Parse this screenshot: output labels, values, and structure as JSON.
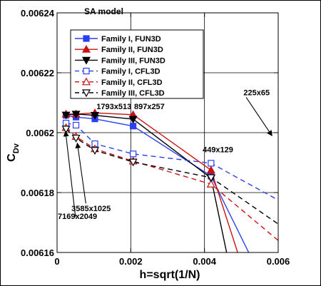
{
  "chart_data": {
    "type": "line",
    "title": "SA model",
    "xlabel": "h=sqrt(1/N)",
    "ylabel_main": "C",
    "ylabel_sub": "Dv",
    "xlim": [
      0,
      0.006
    ],
    "ylim": [
      0.00616,
      0.00624
    ],
    "xticks": [
      0,
      0.002,
      0.004,
      0.006
    ],
    "xtick_labels": [
      "0",
      "0.002",
      "0.004",
      "0.006"
    ],
    "yticks": [
      0.00616,
      0.00618,
      0.0062,
      0.00622,
      0.00624
    ],
    "ytick_labels": [
      "0.00616",
      "0.00618",
      "0.0062",
      "0.00622",
      "0.00624"
    ],
    "grid": true,
    "legend_position": "top-left",
    "colors": {
      "blue": "#2a3ff0",
      "red": "#cc1111",
      "black": "#000000"
    },
    "series": [
      {
        "name": "Family I, FUN3D",
        "color": "#2a3ff0",
        "dash": "solid",
        "marker": "square",
        "fill": true,
        "x": [
          0.000243,
          0.000514,
          0.001026,
          0.002064,
          0.004178,
          0.0052
        ],
        "y": [
          0.0062058,
          0.0062052,
          0.0062046,
          0.0062022,
          0.0061855,
          0.00616
        ]
      },
      {
        "name": "Family II, FUN3D",
        "color": "#cc1111",
        "dash": "solid",
        "marker": "triangle-up",
        "fill": true,
        "x": [
          0.000243,
          0.000514,
          0.001026,
          0.002064,
          0.004178,
          0.0049
        ],
        "y": [
          0.0062062,
          0.0062062,
          0.0062066,
          0.006206,
          0.0061875,
          0.00616
        ]
      },
      {
        "name": "Family III, FUN3D",
        "color": "#000000",
        "dash": "solid",
        "marker": "triangle-down",
        "fill": true,
        "x": [
          0.000243,
          0.000514,
          0.001026,
          0.002064,
          0.004178,
          0.0046
        ],
        "y": [
          0.0062059,
          0.0062062,
          0.0062058,
          0.0062045,
          0.0061848,
          0.00616
        ]
      },
      {
        "name": "Family I, CFL3D",
        "color": "#2a3ff0",
        "dash": "dashed",
        "marker": "square",
        "fill": false,
        "x": [
          0.000243,
          0.000514,
          0.001026,
          0.002064,
          0.004178,
          0.006
        ],
        "y": [
          0.0062032,
          0.0062025,
          0.0061963,
          0.0061929,
          0.0061898,
          0.0061775
        ]
      },
      {
        "name": "Family II, CFL3D",
        "color": "#cc1111",
        "dash": "dashed",
        "marker": "triangle-up",
        "fill": false,
        "x": [
          0.000243,
          0.000514,
          0.001026,
          0.002064,
          0.004178,
          0.006
        ],
        "y": [
          0.0062017,
          0.0061987,
          0.0061946,
          0.0061905,
          0.0061828,
          0.006164
        ]
      },
      {
        "name": "Family III, CFL3D",
        "color": "#000000",
        "dash": "dashed",
        "marker": "triangle-down",
        "fill": false,
        "x": [
          0.000243,
          0.000514,
          0.001026,
          0.002064,
          0.004178,
          0.006
        ],
        "y": [
          0.0062012,
          0.0061982,
          0.0061941,
          0.0061902,
          0.006185,
          0.0061695
        ]
      }
    ],
    "annotations": [
      {
        "text": "1793x513",
        "x": 0.00107,
        "y": 0.0062079,
        "arrow": false
      },
      {
        "text": "897x257",
        "x": 0.00209,
        "y": 0.0062079,
        "arrow": false
      },
      {
        "text": "225x65",
        "x": 0.00506,
        "y": 0.0062125,
        "arrow": true,
        "arrow_from": [
          0.00513,
          0.0062118
        ],
        "arrow_to": [
          0.00583,
          0.006199
        ]
      },
      {
        "text": "449x129",
        "x": 0.00395,
        "y": 0.0061935,
        "arrow": false
      },
      {
        "text": "3585x1025",
        "x": 0.00039,
        "y": 0.0061738,
        "arrow": true,
        "arrow_from": [
          0.00078,
          0.0061764
        ],
        "arrow_to": [
          0.00055,
          0.0061965
        ]
      },
      {
        "text": "7169x2049",
        "x": 2e-05,
        "y": 0.0061712,
        "arrow": true,
        "arrow_from": [
          0.0005,
          0.0061718
        ],
        "arrow_to": [
          0.00023,
          0.0062004
        ]
      }
    ]
  }
}
